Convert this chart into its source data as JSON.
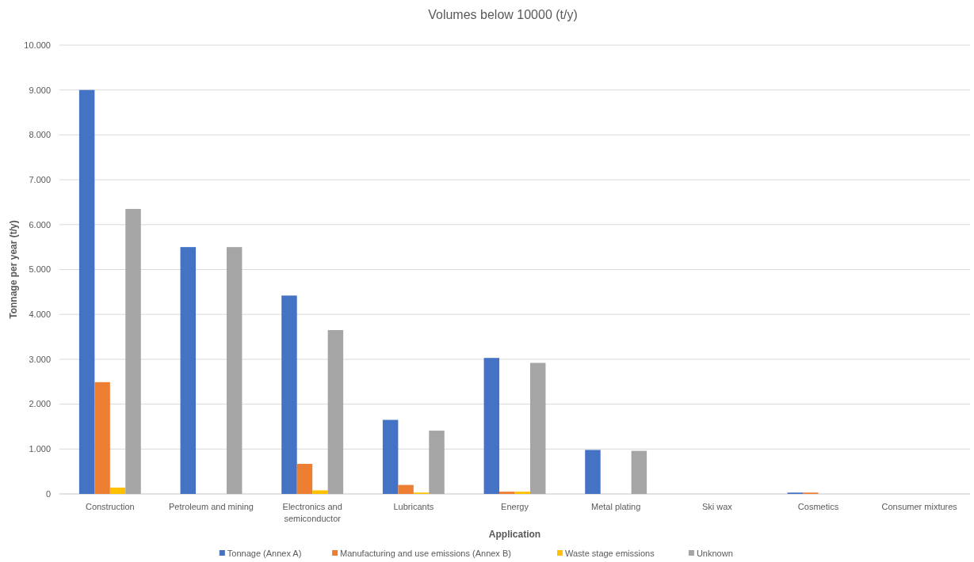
{
  "chart_data": {
    "type": "bar",
    "title": "Volumes below 10000 (t/y)",
    "xlabel": "Application",
    "ylabel": "Tonnage per year (t/y)",
    "categories": [
      "Construction",
      "Petroleum and mining",
      "Electronics and semiconductor",
      "Lubricants",
      "Energy",
      "Metal plating",
      "Ski wax",
      "Cosmetics",
      "Consumer mixtures"
    ],
    "series": [
      {
        "name": "Tonnage (Annex A)",
        "color": "#4472c4",
        "values": [
          9000,
          5500,
          4420,
          1650,
          3030,
          980,
          0,
          30,
          0
        ]
      },
      {
        "name": "Manufacturing and use emissions (Annex B)",
        "color": "#ed7d31",
        "values": [
          2490,
          0,
          670,
          200,
          50,
          0,
          0,
          30,
          0
        ]
      },
      {
        "name": "Waste stage emissions",
        "color": "#ffc000",
        "values": [
          140,
          0,
          80,
          30,
          50,
          0,
          0,
          0,
          0
        ]
      },
      {
        "name": "Unknown",
        "color": "#a5a5a5",
        "values": [
          6350,
          5500,
          3650,
          1410,
          2920,
          960,
          0,
          0,
          0
        ]
      }
    ],
    "ylim": [
      0,
      10000
    ],
    "yticks": [
      {
        "value": 0,
        "label": "0"
      },
      {
        "value": 1000,
        "label": "1.000"
      },
      {
        "value": 2000,
        "label": "2.000"
      },
      {
        "value": 3000,
        "label": "3.000"
      },
      {
        "value": 4000,
        "label": "4.000"
      },
      {
        "value": 5000,
        "label": "5.000"
      },
      {
        "value": 6000,
        "label": "6.000"
      },
      {
        "value": 7000,
        "label": "7.000"
      },
      {
        "value": 8000,
        "label": "8.000"
      },
      {
        "value": 9000,
        "label": "9.000"
      },
      {
        "value": 10000,
        "label": "10.000"
      }
    ],
    "grid": "y",
    "legend": "bottom"
  }
}
